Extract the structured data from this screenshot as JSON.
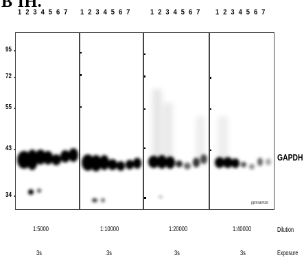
{
  "title": "B&#x27;IH.",
  "lane_numbers": [
    "1 2 3 4 5 6 7",
    "1 2 3 4 5 6 7",
    "1 2 3 4 5 6 7",
    "1 2 3 4 5 6 7"
  ],
  "mw_markers": [
    "95",
    "72",
    "55",
    "43",
    "34"
  ],
  "band_label": "GAPDH",
  "watermark": "ppmsalmzd",
  "dilution": {
    "title": "Dilution",
    "values": [
      "1:5000",
      "1:10000",
      "1:20000",
      "1:40000"
    ]
  },
  "exposure": {
    "title": "Exposure",
    "values": [
      "3s",
      "3s",
      "3s",
      "3s"
    ]
  }
}
